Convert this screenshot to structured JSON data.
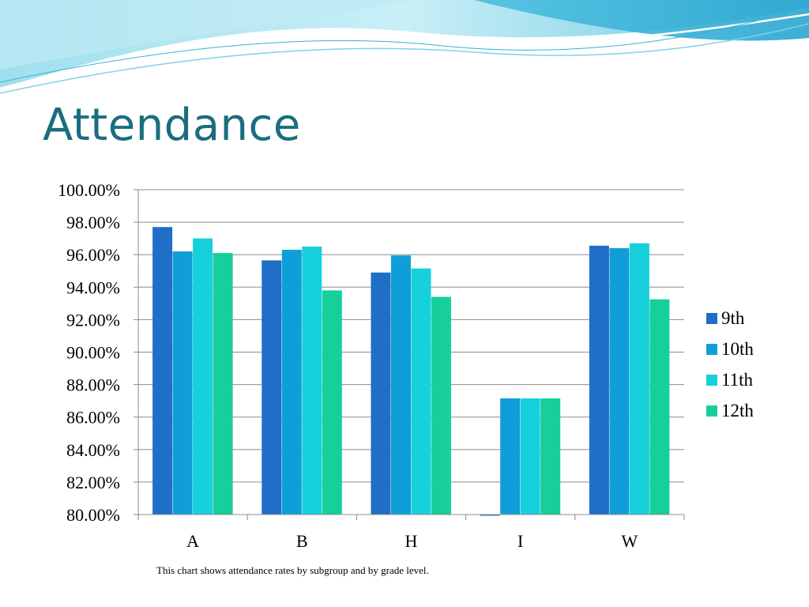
{
  "slide": {
    "title": "Attendance",
    "caption": "This chart shows attendance rates by subgroup and by grade level."
  },
  "colors": {
    "title": "#1a6e7e",
    "banner_light": "#d9f2f8",
    "banner_mid": "#7fd3e6",
    "banner_dark": "#3ab0d4"
  },
  "chart_data": {
    "type": "bar",
    "categories": [
      "A",
      "B",
      "H",
      "I",
      "W"
    ],
    "series": [
      {
        "name": "9th",
        "color": "#1f6fc6",
        "values": [
          97.7,
          95.65,
          94.9,
          79.95,
          96.55
        ]
      },
      {
        "name": "10th",
        "color": "#0f9ed8",
        "values": [
          96.2,
          96.3,
          95.95,
          87.15,
          96.4
        ]
      },
      {
        "name": "11th",
        "color": "#16d0dc",
        "values": [
          97.0,
          96.5,
          95.15,
          87.15,
          96.7
        ]
      },
      {
        "name": "12th",
        "color": "#17cf9b",
        "values": [
          96.1,
          93.8,
          93.4,
          87.15,
          93.25
        ]
      }
    ],
    "ylim": [
      80,
      100
    ],
    "yticks": [
      "80.00%",
      "82.00%",
      "84.00%",
      "86.00%",
      "88.00%",
      "90.00%",
      "92.00%",
      "94.00%",
      "96.00%",
      "98.00%",
      "100.00%"
    ],
    "ytick_values": [
      80,
      82,
      84,
      86,
      88,
      90,
      92,
      94,
      96,
      98,
      100
    ],
    "grid": true,
    "legend": "right",
    "xlabel": "",
    "ylabel": ""
  }
}
